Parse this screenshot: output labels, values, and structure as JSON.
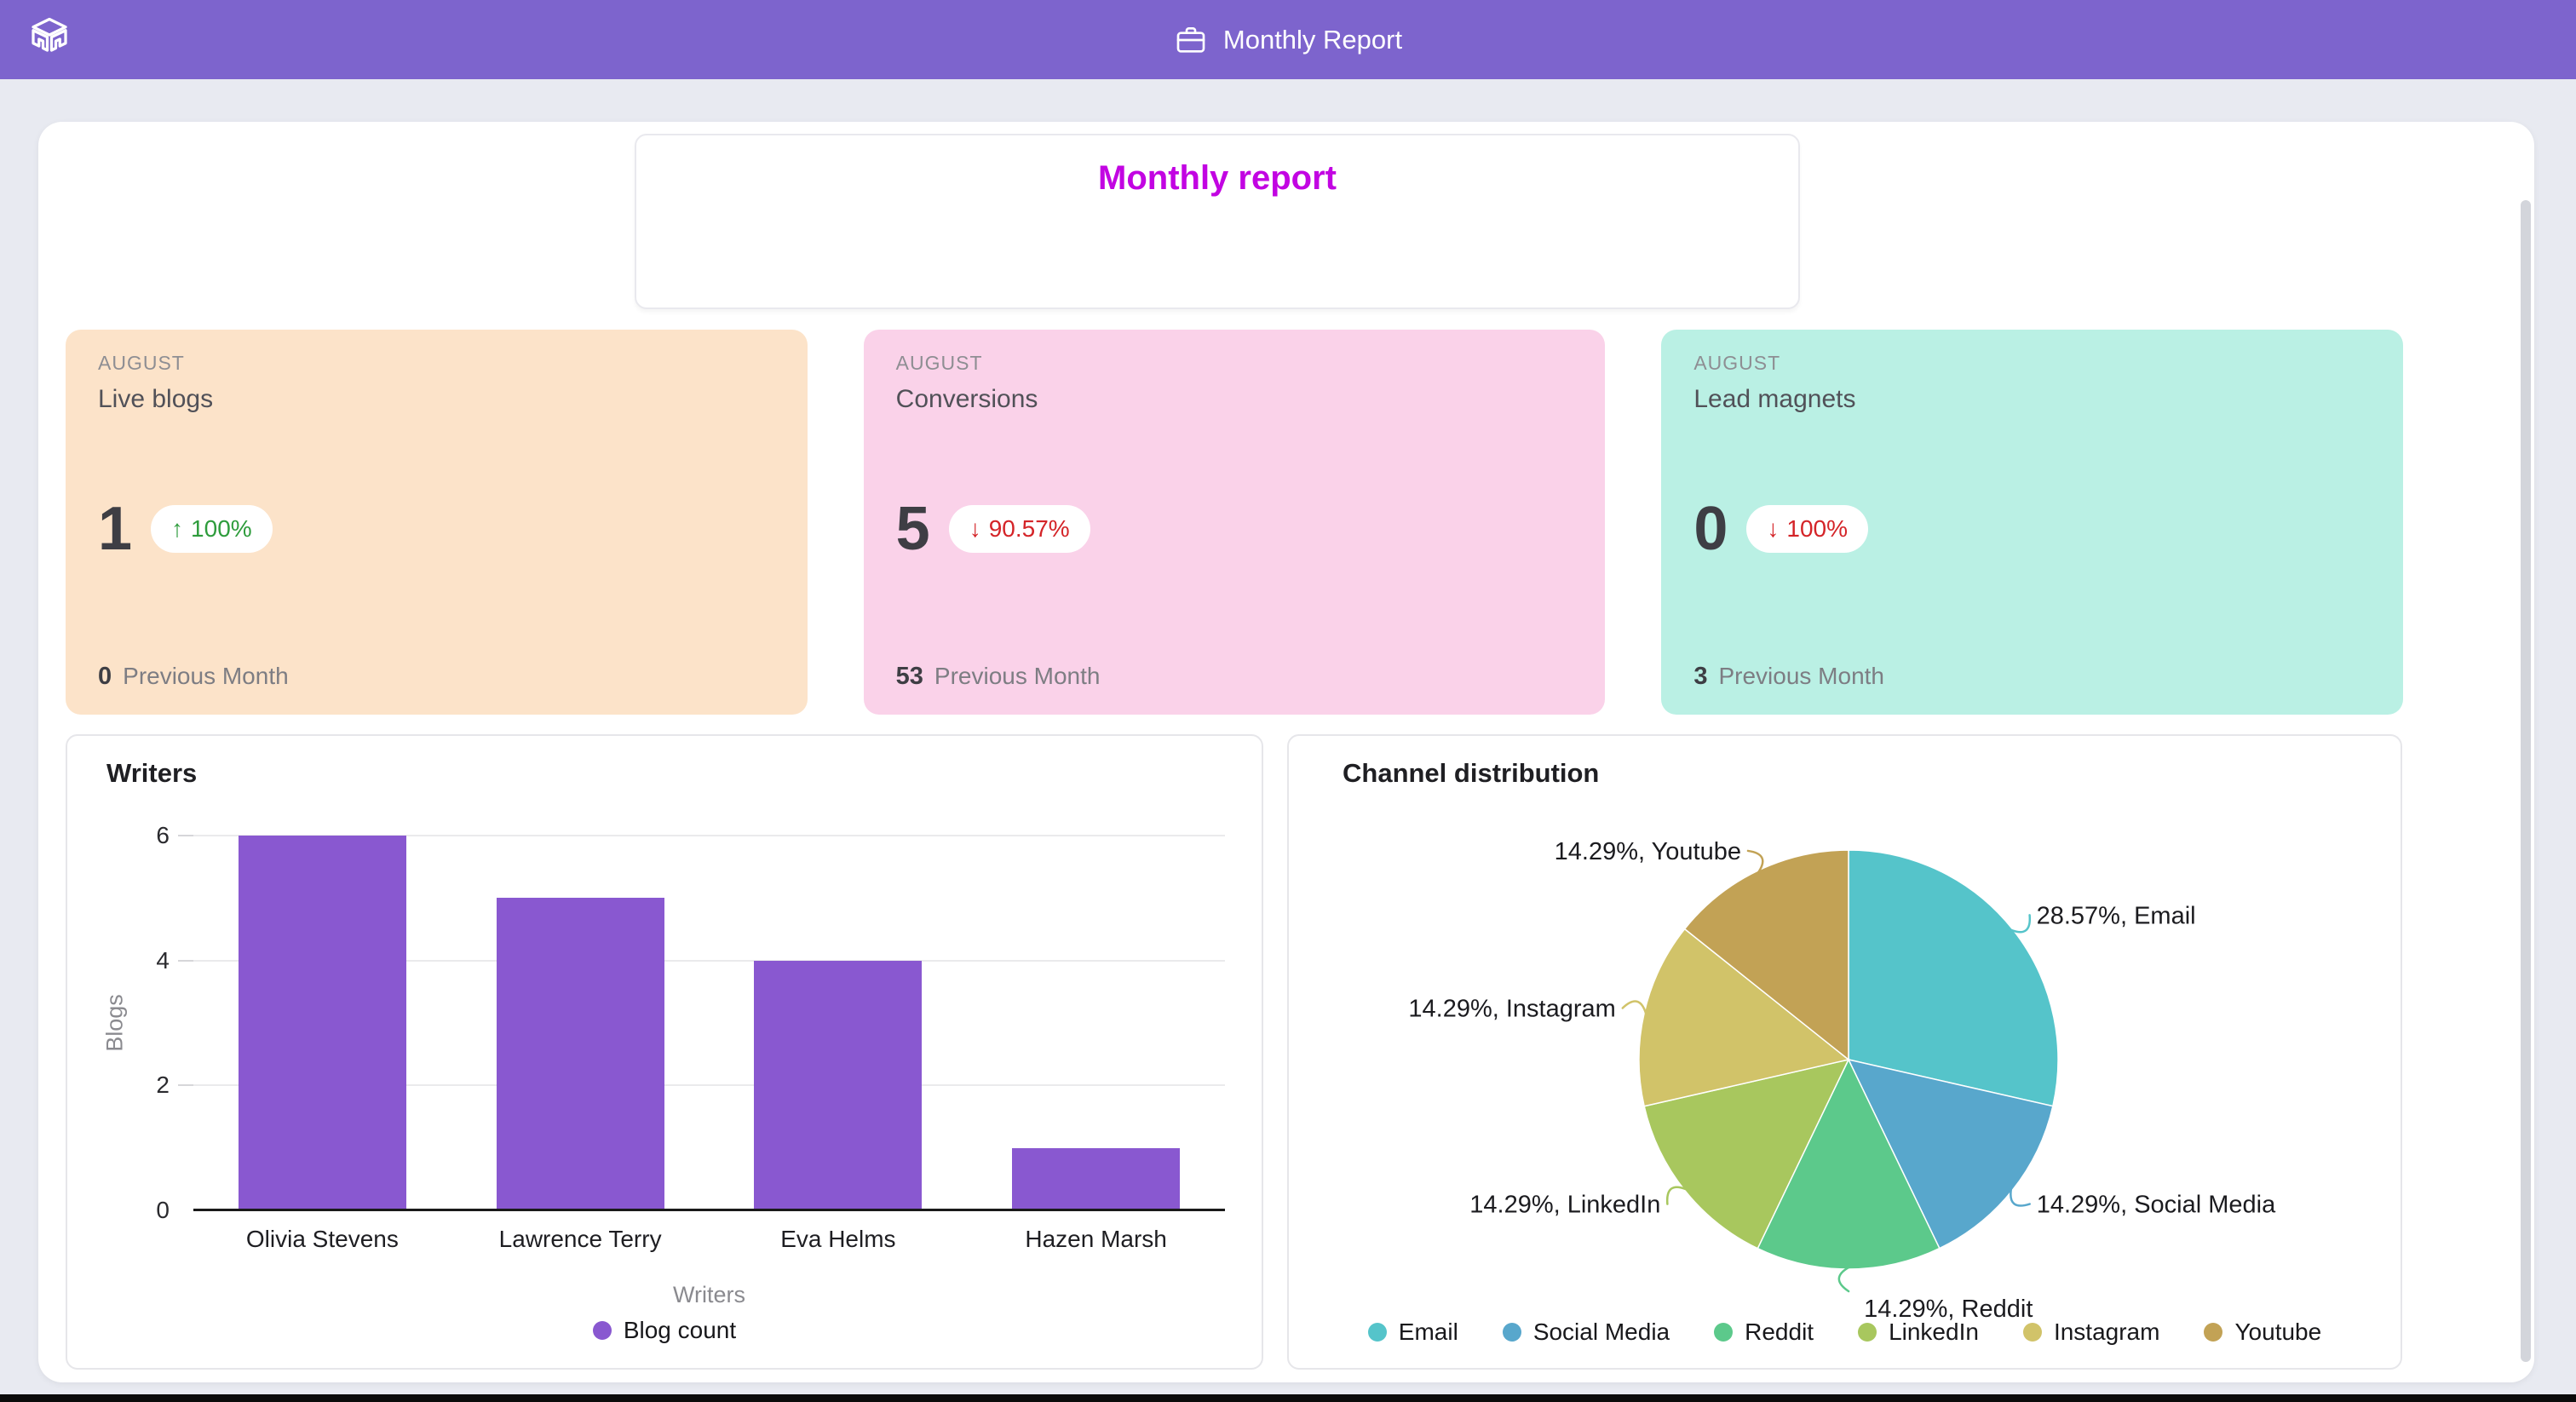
{
  "header": {
    "title": "Monthly Report"
  },
  "report": {
    "heading": "Monthly report"
  },
  "colors": {
    "header_bg": "#7D64CD",
    "page_bg": "#E8EAF1",
    "heading": "#C204E2",
    "positive": "#2E9C3C",
    "negative": "#D42428",
    "scrollbar": "#D3D5DB"
  },
  "stat_cards": [
    {
      "period": "AUGUST",
      "label": "Live blogs",
      "value": "1",
      "delta": "100%",
      "direction": "up",
      "previous_value": "0",
      "previous_label": "Previous Month",
      "bg": "#FCE3C9"
    },
    {
      "period": "AUGUST",
      "label": "Conversions",
      "value": "5",
      "delta": "90.57%",
      "direction": "down",
      "previous_value": "53",
      "previous_label": "Previous Month",
      "bg": "#FAD2E9"
    },
    {
      "period": "AUGUST",
      "label": "Lead magnets",
      "value": "0",
      "delta": "100%",
      "direction": "down",
      "previous_value": "3",
      "previous_label": "Previous Month",
      "bg": "#BAF0E4"
    }
  ],
  "chart_data": [
    {
      "type": "bar",
      "title": "Writers",
      "categories": [
        "Olivia Stevens",
        "Lawrence Terry",
        "Eva Helms",
        "Hazen Marsh"
      ],
      "values": [
        6,
        5,
        4,
        1
      ],
      "series_name": "Blog count",
      "xlabel": "Writers",
      "ylabel": "Blogs",
      "ylim": [
        0,
        6
      ],
      "yticks": [
        0,
        2,
        4,
        6
      ],
      "grid": true,
      "legend_position": "bottom",
      "bar_color": "#8958D0"
    },
    {
      "type": "pie",
      "title": "Channel distribution",
      "start_angle_deg": 0,
      "direction": "clockwise",
      "legend_position": "bottom",
      "slices": [
        {
          "label": "Email",
          "value": 28.57,
          "color": "#55C4CA",
          "callout": "28.57%, Email"
        },
        {
          "label": "Social Media",
          "value": 14.29,
          "color": "#58A7CC",
          "callout": "14.29%, Social Media"
        },
        {
          "label": "Reddit",
          "value": 14.29,
          "color": "#5CC98B",
          "callout": "14.29%, Reddit"
        },
        {
          "label": "LinkedIn",
          "value": 14.29,
          "color": "#A8C75E",
          "callout": "14.29%, LinkedIn"
        },
        {
          "label": "Instagram",
          "value": 14.29,
          "color": "#D1C369",
          "callout": "14.29%, Instagram"
        },
        {
          "label": "Youtube",
          "value": 14.29,
          "color": "#C2A255",
          "callout": "14.29%, Youtube"
        }
      ]
    }
  ]
}
